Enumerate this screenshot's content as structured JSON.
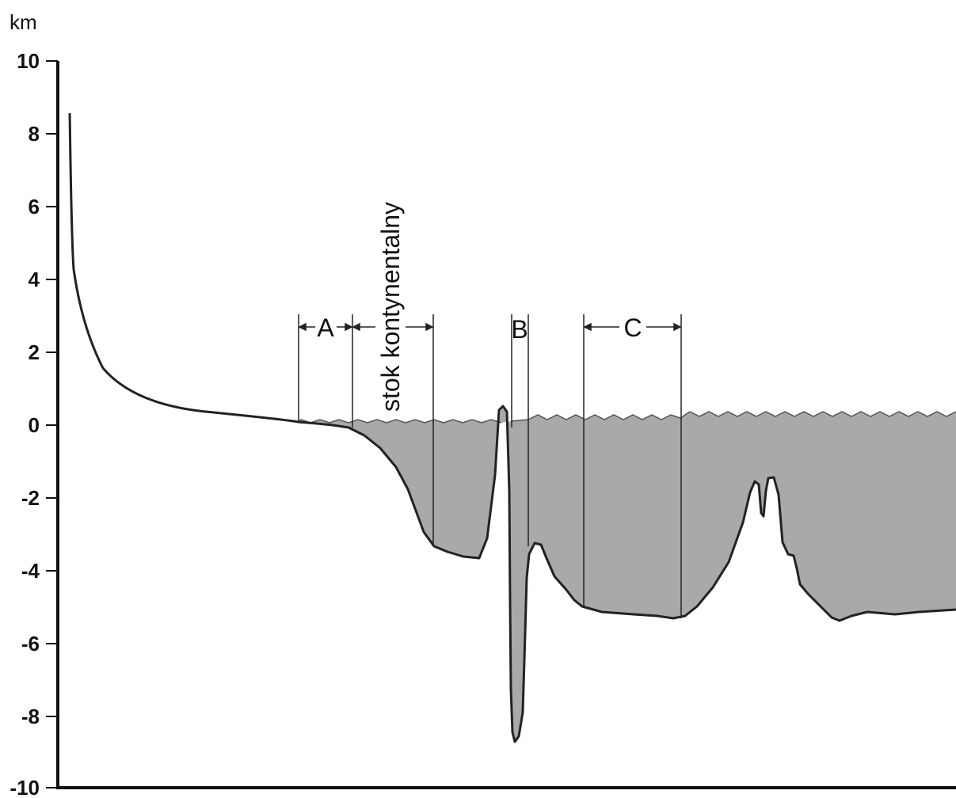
{
  "y_axis": {
    "unit": "km",
    "ticks": [
      "10",
      "8",
      "6",
      "4",
      "2",
      "0",
      "-2",
      "-4",
      "-6",
      "-8",
      "-10"
    ]
  },
  "labels": {
    "zone_a": "A",
    "zone_b": "B",
    "zone_c": "C",
    "slope": "stok kontynentalny"
  },
  "colors": {
    "water": "#a9a9a9",
    "line": "#222222"
  }
}
